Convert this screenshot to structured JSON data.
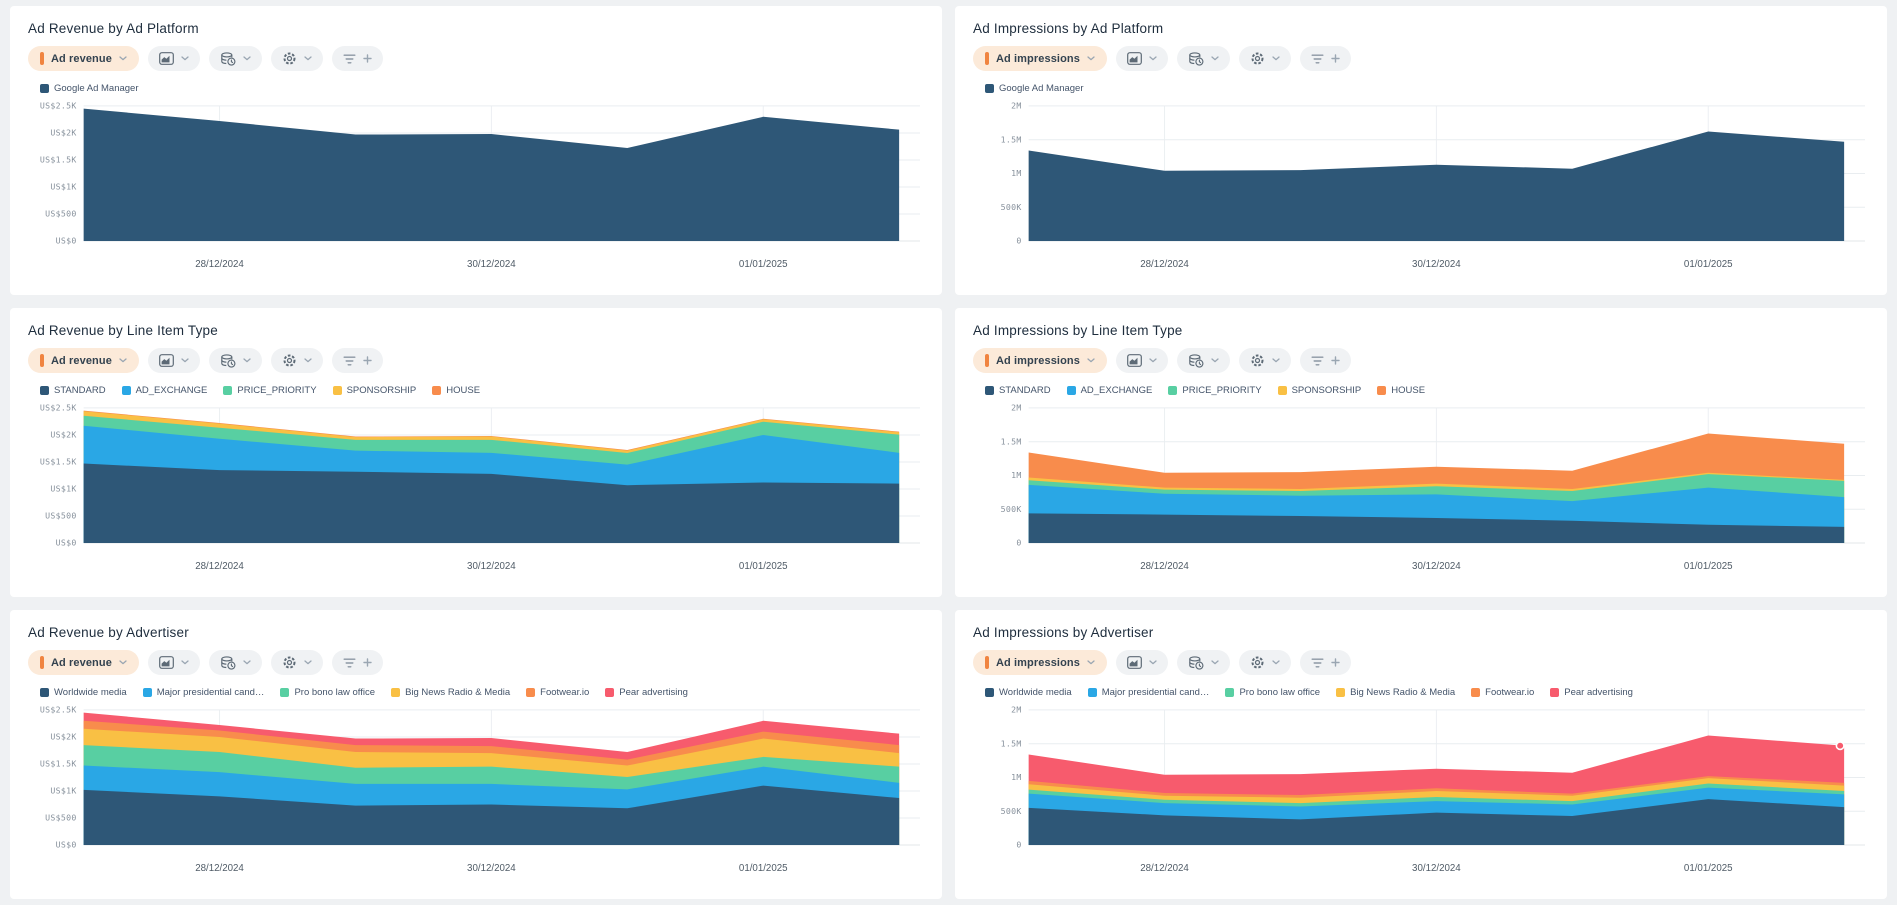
{
  "ui_colors": {
    "page_background": "#eff1f3",
    "card_background": "#ffffff",
    "metric_pill_background": "#fcead9",
    "metric_accent": "#f08440",
    "pill_background": "#f0f2f4",
    "title_text": "#1e2d3d",
    "legend_text": "#44546a",
    "y_axis_text": "#87919c",
    "x_axis_text": "#4f5b66"
  },
  "icons": {
    "metric-bar-icon": "orange vertical bar",
    "chevron-down-icon": "v chevron",
    "area-chart-icon": "filled mountain in rounded square",
    "database-clock-icon": "database cylinder with small clock",
    "gear-icon": "cog outline",
    "filter-icon": "three stacked lines",
    "plus-icon": "+"
  },
  "chart_data": [
    {
      "title": "Ad Revenue by Ad Platform",
      "metric_label": "Ad revenue",
      "type": "area",
      "stacked": true,
      "grid": true,
      "legend_position": "top",
      "num_points": 7,
      "x_tick_labels": [
        "28/12/2024",
        "30/12/2024",
        "01/01/2025"
      ],
      "x_tick_indices": [
        1,
        3,
        5
      ],
      "y_axis": {
        "max": 2500,
        "tick_values": [
          0,
          500,
          1000,
          1500,
          2000,
          2500
        ],
        "tick_labels": [
          "US$0",
          "US$500",
          "US$1K",
          "US$1.5K",
          "US$2K",
          "US$2.5K"
        ]
      },
      "series": [
        {
          "name": "Google Ad Manager",
          "color": "#2e5777",
          "values": [
            2450,
            2220,
            1970,
            1980,
            1720,
            2300,
            2060
          ]
        }
      ]
    },
    {
      "title": "Ad Impressions by Ad Platform",
      "metric_label": "Ad impressions",
      "type": "area",
      "stacked": true,
      "grid": true,
      "legend_position": "top",
      "num_points": 7,
      "x_tick_labels": [
        "28/12/2024",
        "30/12/2024",
        "01/01/2025"
      ],
      "x_tick_indices": [
        1,
        3,
        5
      ],
      "y_axis": {
        "max": 2000000,
        "tick_values": [
          0,
          500000,
          1000000,
          1500000,
          2000000
        ],
        "tick_labels": [
          "0",
          "500K",
          "1M",
          "1.5M",
          "2M"
        ]
      },
      "series": [
        {
          "name": "Google Ad Manager",
          "color": "#2e5777",
          "values": [
            1340000,
            1040000,
            1050000,
            1130000,
            1070000,
            1620000,
            1470000
          ]
        }
      ]
    },
    {
      "title": "Ad Revenue by Line Item Type",
      "metric_label": "Ad revenue",
      "type": "area",
      "stacked": true,
      "grid": true,
      "legend_position": "top",
      "num_points": 7,
      "x_tick_labels": [
        "28/12/2024",
        "30/12/2024",
        "01/01/2025"
      ],
      "x_tick_indices": [
        1,
        3,
        5
      ],
      "y_axis": {
        "max": 2500,
        "tick_values": [
          0,
          500,
          1000,
          1500,
          2000,
          2500
        ],
        "tick_labels": [
          "US$0",
          "US$500",
          "US$1K",
          "US$1.5K",
          "US$2K",
          "US$2.5K"
        ]
      },
      "series": [
        {
          "name": "STANDARD",
          "color": "#2e5777",
          "values": [
            1470,
            1350,
            1320,
            1280,
            1070,
            1120,
            1100
          ]
        },
        {
          "name": "AD_EXCHANGE",
          "color": "#2aa7e5",
          "values": [
            700,
            580,
            390,
            390,
            380,
            880,
            570
          ]
        },
        {
          "name": "PRICE_PRIORITY",
          "color": "#58cfa2",
          "values": [
            185,
            205,
            200,
            240,
            215,
            245,
            335
          ]
        },
        {
          "name": "SPONSORSHIP",
          "color": "#f9c044",
          "values": [
            85,
            75,
            50,
            60,
            45,
            45,
            45
          ]
        },
        {
          "name": "HOUSE",
          "color": "#f88c4c",
          "values": [
            10,
            10,
            10,
            10,
            10,
            10,
            10
          ]
        }
      ]
    },
    {
      "title": "Ad Impressions by Line Item Type",
      "metric_label": "Ad impressions",
      "type": "area",
      "stacked": true,
      "grid": true,
      "legend_position": "top",
      "num_points": 7,
      "x_tick_labels": [
        "28/12/2024",
        "30/12/2024",
        "01/01/2025"
      ],
      "x_tick_indices": [
        1,
        3,
        5
      ],
      "y_axis": {
        "max": 2000000,
        "tick_values": [
          0,
          500000,
          1000000,
          1500000,
          2000000
        ],
        "tick_labels": [
          "0",
          "500K",
          "1M",
          "1.5M",
          "2M"
        ]
      },
      "series": [
        {
          "name": "STANDARD",
          "color": "#2e5777",
          "values": [
            440000,
            420000,
            400000,
            370000,
            330000,
            270000,
            240000
          ]
        },
        {
          "name": "AD_EXCHANGE",
          "color": "#2aa7e5",
          "values": [
            420000,
            310000,
            300000,
            350000,
            290000,
            550000,
            440000
          ]
        },
        {
          "name": "PRICE_PRIORITY",
          "color": "#58cfa2",
          "values": [
            70000,
            60000,
            70000,
            120000,
            150000,
            200000,
            240000
          ]
        },
        {
          "name": "SPONSORSHIP",
          "color": "#f9c044",
          "values": [
            40000,
            30000,
            30000,
            40000,
            30000,
            20000,
            15000
          ]
        },
        {
          "name": "HOUSE",
          "color": "#f88c4c",
          "values": [
            370000,
            220000,
            250000,
            250000,
            270000,
            580000,
            535000
          ]
        }
      ]
    },
    {
      "title": "Ad Revenue by Advertiser",
      "metric_label": "Ad revenue",
      "type": "area",
      "stacked": true,
      "grid": true,
      "legend_position": "top",
      "num_points": 7,
      "x_tick_labels": [
        "28/12/2024",
        "30/12/2024",
        "01/01/2025"
      ],
      "x_tick_indices": [
        1,
        3,
        5
      ],
      "y_axis": {
        "max": 2500,
        "tick_values": [
          0,
          500,
          1000,
          1500,
          2000,
          2500
        ],
        "tick_labels": [
          "US$0",
          "US$500",
          "US$1K",
          "US$1.5K",
          "US$2K",
          "US$2.5K"
        ]
      },
      "series": [
        {
          "name": "Worldwide media",
          "color": "#2e5777",
          "values": [
            1020,
            900,
            730,
            750,
            680,
            1100,
            870
          ]
        },
        {
          "name": "Major presidential cand…",
          "color": "#2aa7e5",
          "values": [
            450,
            450,
            400,
            380,
            350,
            350,
            280
          ]
        },
        {
          "name": "Pro bono law office",
          "color": "#58cfa2",
          "values": [
            380,
            370,
            300,
            320,
            230,
            180,
            300
          ]
        },
        {
          "name": "Big News Radio & Media",
          "color": "#f9c044",
          "values": [
            300,
            280,
            290,
            250,
            210,
            340,
            250
          ]
        },
        {
          "name": "Footwear.io",
          "color": "#f88c4c",
          "values": [
            150,
            120,
            130,
            130,
            110,
            130,
            150
          ]
        },
        {
          "name": "Pear advertising",
          "color": "#f75b6d",
          "values": [
            150,
            100,
            120,
            150,
            140,
            200,
            210
          ]
        }
      ]
    },
    {
      "title": "Ad Impressions by Advertiser",
      "metric_label": "Ad impressions",
      "type": "area",
      "stacked": true,
      "grid": true,
      "legend_position": "top",
      "num_points": 7,
      "x_tick_labels": [
        "28/12/2024",
        "30/12/2024",
        "01/01/2025"
      ],
      "x_tick_indices": [
        1,
        3,
        5
      ],
      "y_axis": {
        "max": 2000000,
        "tick_values": [
          0,
          500000,
          1000000,
          1500000,
          2000000
        ],
        "tick_labels": [
          "0",
          "500K",
          "1M",
          "1.5M",
          "2M"
        ]
      },
      "end_marker": {
        "series": "Pear advertising",
        "point_index": 6
      },
      "series": [
        {
          "name": "Worldwide media",
          "color": "#2e5777",
          "values": [
            550000,
            440000,
            380000,
            480000,
            430000,
            680000,
            560000
          ]
        },
        {
          "name": "Major presidential cand…",
          "color": "#2aa7e5",
          "values": [
            210000,
            180000,
            190000,
            170000,
            170000,
            170000,
            190000
          ]
        },
        {
          "name": "Pro bono law office",
          "color": "#58cfa2",
          "values": [
            60000,
            50000,
            50000,
            60000,
            50000,
            60000,
            50000
          ]
        },
        {
          "name": "Big News Radio & Media",
          "color": "#f9c044",
          "values": [
            80000,
            60000,
            80000,
            90000,
            80000,
            80000,
            80000
          ]
        },
        {
          "name": "Footwear.io",
          "color": "#f88c4c",
          "values": [
            50000,
            40000,
            40000,
            40000,
            30000,
            30000,
            40000
          ]
        },
        {
          "name": "Pear advertising",
          "color": "#f75b6d",
          "values": [
            390000,
            270000,
            310000,
            290000,
            310000,
            600000,
            550000
          ]
        }
      ]
    }
  ]
}
